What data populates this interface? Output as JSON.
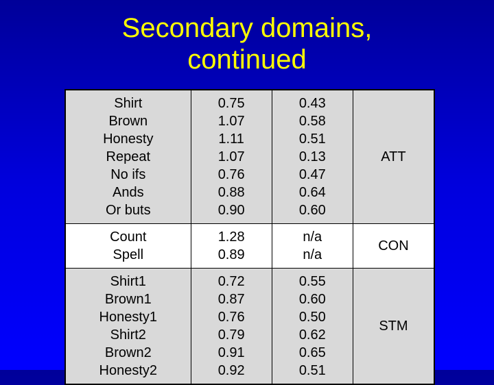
{
  "title_line1": "Secondary domains,",
  "title_line2": "continued",
  "colors": {
    "bg_top": "#000099",
    "bg_bottom": "#0000ff",
    "title": "#ffff00",
    "text": "#000000",
    "shade": "#d9d9d9",
    "white": "#ffffff",
    "border": "#000000"
  },
  "font_family": "Arial",
  "title_fontsize": 40,
  "cell_fontsize": 20,
  "groups": [
    {
      "shaded": true,
      "category": "ATT",
      "rows": [
        {
          "item": "Shirt",
          "v1": "0.75",
          "v2": "0.43"
        },
        {
          "item": "Brown",
          "v1": "1.07",
          "v2": "0.58"
        },
        {
          "item": "Honesty",
          "v1": "1.11",
          "v2": "0.51"
        },
        {
          "item": "Repeat",
          "v1": "1.07",
          "v2": "0.13"
        },
        {
          "item": "No ifs",
          "v1": "0.76",
          "v2": "0.47"
        },
        {
          "item": "Ands",
          "v1": "0.88",
          "v2": "0.64"
        },
        {
          "item": "Or buts",
          "v1": "0.90",
          "v2": "0.60"
        }
      ]
    },
    {
      "shaded": false,
      "category": "CON",
      "rows": [
        {
          "item": "Count",
          "v1": "1.28",
          "v2": "n/a"
        },
        {
          "item": "Spell",
          "v1": "0.89",
          "v2": "n/a"
        }
      ]
    },
    {
      "shaded": true,
      "category": "STM",
      "rows": [
        {
          "item": "Shirt1",
          "v1": "0.72",
          "v2": "0.55"
        },
        {
          "item": "Brown1",
          "v1": "0.87",
          "v2": "0.60"
        },
        {
          "item": "Honesty1",
          "v1": "0.76",
          "v2": "0.50"
        },
        {
          "item": "Shirt2",
          "v1": "0.79",
          "v2": "0.62"
        },
        {
          "item": "Brown2",
          "v1": "0.91",
          "v2": "0.65"
        },
        {
          "item": "Honesty2",
          "v1": "0.92",
          "v2": "0.51"
        }
      ]
    }
  ]
}
